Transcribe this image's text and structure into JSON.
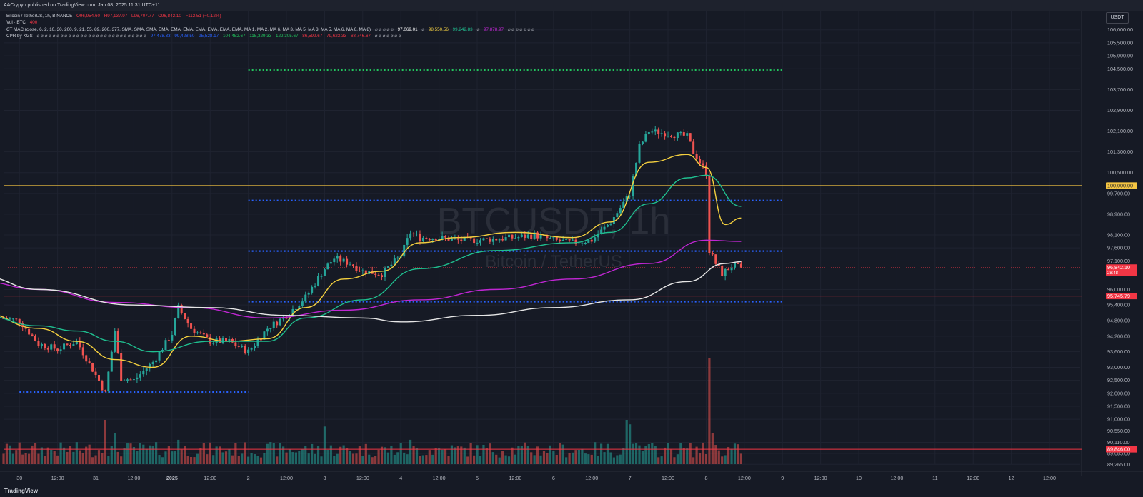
{
  "header": {
    "publish_line": "AACrypyo published on TradingView.com, Jan 08, 2025 11:31 UTC+11"
  },
  "legend": {
    "symbol": "Bitcoin / TetherUS, 1h, BINANCE",
    "open": "O96,954.60",
    "high": "H97,137.97",
    "low": "L96,707.77",
    "close": "C96,842.10",
    "change": "−112.51 (−0.12%)",
    "vol_label": "Vol · BTC",
    "vol_value": "400",
    "mac_label": "CT MAC (close, 6, 2, 10, 30, 200, 9, 21, 55, 89, 200, 377, SMA, SMA, SMA, EMA, EMA, EMA, EMA, EMA, EMA, EMA, MA 1, MA 2, MA 6, MA 3, MA 5, MA 3, MA 5, MA 6, MA 6, MA 8)",
    "mac_symbols": "⌀ ⌀ ⌀ ⌀ ⌀",
    "mac_v1": "97,069.01",
    "mac_s2": "⌀",
    "mac_v2": "98,550.56",
    "mac_v3": "99,242.83",
    "mac_s4": "⌀",
    "mac_v4": "97,878.97",
    "mac_tail": "⌀ ⌀ ⌀ ⌀ ⌀ ⌀ ⌀",
    "cpr_label": "CPR by KGS",
    "cpr_symbols": "⌀ ⌀ ⌀ ⌀ ⌀ ⌀ ⌀ ⌀ ⌀ ⌀ ⌀ ⌀ ⌀ ⌀ ⌀ ⌀ ⌀ ⌀ ⌀ ⌀ ⌀ ⌀ ⌀ ⌀ ⌀ ⌀ ⌀ ⌀",
    "cpr_values": [
      "97,478.33",
      "99,428.50",
      "95,528.17",
      "104,452.67",
      "115,329.33",
      "122,305.67",
      "86,599.67",
      "79,623.33",
      "68,746.67"
    ],
    "cpr_tail": "⌀ ⌀ ⌀ ⌀ ⌀ ⌀ ⌀"
  },
  "currency": "USDT",
  "footer": {
    "logo": "TradingView"
  },
  "colors": {
    "background": "#161a25",
    "up": "#26a69a",
    "down": "#ef5350",
    "ema_yellow": "#f4d03f",
    "ema_green": "#1fbf8f",
    "ma_magenta": "#c026d3",
    "ma_white": "#e6e6e6",
    "cpr_blue": "#2962ff",
    "cpr_green": "#22c55e",
    "level_yellow": "#f5c542",
    "level_red": "#f23645"
  },
  "chart_data": {
    "type": "candlestick",
    "title": "Bitcoin / TetherUS, 1h, BINANCE",
    "watermark_symbol": "BTCUSDT, 1h",
    "watermark_name": "Bitcoin / TetherUS",
    "ylim": [
      89000,
      107000
    ],
    "y_ticks": [
      "106,000.00",
      "105,500.00",
      "105,000.00",
      "104,500.00",
      "103,700.00",
      "102,900.00",
      "102,100.00",
      "101,300.00",
      "100,500.00",
      "99,700.00",
      "98,900.00",
      "98,100.00",
      "97,600.00",
      "97,100.00",
      "96,000.00",
      "95,400.00",
      "94,800.00",
      "94,200.00",
      "93,600.00",
      "93,000.00",
      "92,500.00",
      "92,000.00",
      "91,500.00",
      "91,000.00",
      "90,550.00",
      "90,110.00",
      "89,685.00",
      "89,265.00"
    ],
    "x_ticks": [
      "30",
      "12:00",
      "31",
      "12:00",
      "2025",
      "12:00",
      "2",
      "12:00",
      "3",
      "12:00",
      "4",
      "12:00",
      "5",
      "12:00",
      "6",
      "12:00",
      "7",
      "12:00",
      "8",
      "12:00",
      "9",
      "12:00",
      "10",
      "12:00",
      "11",
      "12:00",
      "12",
      "12:00"
    ],
    "price_labels": {
      "level_100k": "100,000.00",
      "last_price": "96,842.10",
      "last_countdown": "28:48",
      "level_95745": "95,745.79",
      "level_89846": "89,846.00"
    },
    "horizontal_levels": [
      {
        "value": 100000.0,
        "color": "#f5c542"
      },
      {
        "value": 95745.79,
        "color": "#f23645"
      },
      {
        "value": 89846.0,
        "color": "#f23645"
      }
    ],
    "cpr_levels": [
      {
        "value": 104452.67,
        "color": "#22c55e",
        "from": "2025-01-02 00:00",
        "to": "2025-01-09 00:00"
      },
      {
        "value": 99428.5,
        "color": "#2962ff",
        "from": "2025-01-02 00:00",
        "to": "2025-01-09 00:00"
      },
      {
        "value": 97478.33,
        "color": "#2962ff",
        "from": "2025-01-02 00:00",
        "to": "2025-01-09 00:00"
      },
      {
        "value": 95528.17,
        "color": "#2962ff",
        "from": "2025-01-02 00:00",
        "to": "2025-01-09 00:00"
      },
      {
        "value": 92050.0,
        "color": "#2962ff",
        "from": "2024-12-30 00:00",
        "to": "2025-01-02 00:00"
      }
    ],
    "close_keypoints": [
      {
        "t": "2024-12-29 12:00",
        "v": 95000
      },
      {
        "t": "2024-12-30 00:00",
        "v": 94800
      },
      {
        "t": "2024-12-30 06:00",
        "v": 93900
      },
      {
        "t": "2024-12-30 12:00",
        "v": 93700
      },
      {
        "t": "2024-12-30 18:00",
        "v": 94000
      },
      {
        "t": "2024-12-31 00:00",
        "v": 92700
      },
      {
        "t": "2024-12-31 03:00",
        "v": 92000
      },
      {
        "t": "2024-12-31 06:00",
        "v": 94400
      },
      {
        "t": "2024-12-31 08:00",
        "v": 92600
      },
      {
        "t": "2024-12-31 12:00",
        "v": 92500
      },
      {
        "t": "2024-12-31 18:00",
        "v": 93200
      },
      {
        "t": "2025-01-01 00:00",
        "v": 94300
      },
      {
        "t": "2025-01-01 02:00",
        "v": 95300
      },
      {
        "t": "2025-01-01 06:00",
        "v": 94500
      },
      {
        "t": "2025-01-01 12:00",
        "v": 94000
      },
      {
        "t": "2025-01-01 18:00",
        "v": 94000
      },
      {
        "t": "2025-01-02 00:00",
        "v": 93600
      },
      {
        "t": "2025-01-02 06:00",
        "v": 94500
      },
      {
        "t": "2025-01-02 12:00",
        "v": 95000
      },
      {
        "t": "2025-01-02 18:00",
        "v": 95700
      },
      {
        "t": "2025-01-03 00:00",
        "v": 96800
      },
      {
        "t": "2025-01-03 03:00",
        "v": 97200
      },
      {
        "t": "2025-01-03 08:00",
        "v": 97000
      },
      {
        "t": "2025-01-03 12:00",
        "v": 96700
      },
      {
        "t": "2025-01-03 18:00",
        "v": 96600
      },
      {
        "t": "2025-01-04 00:00",
        "v": 97300
      },
      {
        "t": "2025-01-04 03:00",
        "v": 98200
      },
      {
        "t": "2025-01-04 06:00",
        "v": 98000
      },
      {
        "t": "2025-01-04 12:00",
        "v": 98000
      },
      {
        "t": "2025-01-04 18:00",
        "v": 97900
      },
      {
        "t": "2025-01-05 00:00",
        "v": 97900
      },
      {
        "t": "2025-01-05 12:00",
        "v": 98000
      },
      {
        "t": "2025-01-05 18:00",
        "v": 98100
      },
      {
        "t": "2025-01-06 00:00",
        "v": 97900
      },
      {
        "t": "2025-01-06 06:00",
        "v": 97800
      },
      {
        "t": "2025-01-06 12:00",
        "v": 97900
      },
      {
        "t": "2025-01-06 18:00",
        "v": 98600
      },
      {
        "t": "2025-01-07 00:00",
        "v": 99700
      },
      {
        "t": "2025-01-07 03:00",
        "v": 101500
      },
      {
        "t": "2025-01-07 06:00",
        "v": 102100
      },
      {
        "t": "2025-01-07 12:00",
        "v": 102000
      },
      {
        "t": "2025-01-07 18:00",
        "v": 101900
      },
      {
        "t": "2025-01-07 20:00",
        "v": 101300
      },
      {
        "t": "2025-01-08 00:00",
        "v": 100500
      },
      {
        "t": "2025-01-08 01:00",
        "v": 97500
      },
      {
        "t": "2025-01-08 03:00",
        "v": 97000
      },
      {
        "t": "2025-01-08 05:00",
        "v": 96600
      },
      {
        "t": "2025-01-08 08:00",
        "v": 96900
      },
      {
        "t": "2025-01-08 11:00",
        "v": 96842.1
      }
    ],
    "series": [
      {
        "color": "#f4d03f",
        "points": [
          {
            "t": "2024-12-29 12:00",
            "v": 95100
          },
          {
            "t": "2024-12-30 06:00",
            "v": 94500
          },
          {
            "t": "2024-12-30 18:00",
            "v": 94000
          },
          {
            "t": "2024-12-31 06:00",
            "v": 93300
          },
          {
            "t": "2024-12-31 18:00",
            "v": 93000
          },
          {
            "t": "2025-01-01 06:00",
            "v": 94200
          },
          {
            "t": "2025-01-01 18:00",
            "v": 94000
          },
          {
            "t": "2025-01-02 06:00",
            "v": 94100
          },
          {
            "t": "2025-01-02 18:00",
            "v": 95300
          },
          {
            "t": "2025-01-03 06:00",
            "v": 96400
          },
          {
            "t": "2025-01-03 18:00",
            "v": 96700
          },
          {
            "t": "2025-01-04 06:00",
            "v": 97800
          },
          {
            "t": "2025-01-04 18:00",
            "v": 98000
          },
          {
            "t": "2025-01-05 12:00",
            "v": 98200
          },
          {
            "t": "2025-01-06 06:00",
            "v": 98000
          },
          {
            "t": "2025-01-06 18:00",
            "v": 98600
          },
          {
            "t": "2025-01-07 06:00",
            "v": 100900
          },
          {
            "t": "2025-01-07 18:00",
            "v": 101200
          },
          {
            "t": "2025-01-08 00:00",
            "v": 100700
          },
          {
            "t": "2025-01-08 06:00",
            "v": 98500
          },
          {
            "t": "2025-01-08 11:00",
            "v": 98750
          }
        ]
      },
      {
        "color": "#1fbf8f",
        "points": [
          {
            "t": "2024-12-29 12:00",
            "v": 95000
          },
          {
            "t": "2024-12-30 06:00",
            "v": 94600
          },
          {
            "t": "2024-12-30 18:00",
            "v": 94400
          },
          {
            "t": "2024-12-31 06:00",
            "v": 94000
          },
          {
            "t": "2024-12-31 18:00",
            "v": 93600
          },
          {
            "t": "2025-01-01 12:00",
            "v": 94000
          },
          {
            "t": "2025-01-02 06:00",
            "v": 94000
          },
          {
            "t": "2025-01-02 18:00",
            "v": 94900
          },
          {
            "t": "2025-01-03 12:00",
            "v": 95600
          },
          {
            "t": "2025-01-04 06:00",
            "v": 96800
          },
          {
            "t": "2025-01-05 06:00",
            "v": 97500
          },
          {
            "t": "2025-01-06 06:00",
            "v": 97800
          },
          {
            "t": "2025-01-06 18:00",
            "v": 98200
          },
          {
            "t": "2025-01-07 06:00",
            "v": 99300
          },
          {
            "t": "2025-01-07 18:00",
            "v": 100300
          },
          {
            "t": "2025-01-08 00:00",
            "v": 100400
          },
          {
            "t": "2025-01-08 11:00",
            "v": 99200
          }
        ]
      },
      {
        "color": "#c026d3",
        "points": [
          {
            "t": "2024-12-29 12:00",
            "v": 96300
          },
          {
            "t": "2024-12-30 06:00",
            "v": 96000
          },
          {
            "t": "2024-12-31 06:00",
            "v": 95500
          },
          {
            "t": "2025-01-01 06:00",
            "v": 95300
          },
          {
            "t": "2025-01-02 06:00",
            "v": 94900
          },
          {
            "t": "2025-01-03 06:00",
            "v": 95200
          },
          {
            "t": "2025-01-04 06:00",
            "v": 95600
          },
          {
            "t": "2025-01-05 06:00",
            "v": 96000
          },
          {
            "t": "2025-01-06 06:00",
            "v": 96400
          },
          {
            "t": "2025-01-07 06:00",
            "v": 97000
          },
          {
            "t": "2025-01-08 00:00",
            "v": 97900
          },
          {
            "t": "2025-01-08 11:00",
            "v": 97850
          }
        ]
      },
      {
        "color": "#e6e6e6",
        "points": [
          {
            "t": "2024-12-29 12:00",
            "v": 96500
          },
          {
            "t": "2024-12-30 06:00",
            "v": 96000
          },
          {
            "t": "2024-12-31 12:00",
            "v": 95400
          },
          {
            "t": "2025-01-01 12:00",
            "v": 95300
          },
          {
            "t": "2025-01-02 12:00",
            "v": 95000
          },
          {
            "t": "2025-01-03 12:00",
            "v": 94900
          },
          {
            "t": "2025-01-04 00:00",
            "v": 94750
          },
          {
            "t": "2025-01-05 00:00",
            "v": 95000
          },
          {
            "t": "2025-01-06 00:00",
            "v": 95300
          },
          {
            "t": "2025-01-07 00:00",
            "v": 95600
          },
          {
            "t": "2025-01-07 18:00",
            "v": 96300
          },
          {
            "t": "2025-01-08 06:00",
            "v": 97000
          },
          {
            "t": "2025-01-08 11:00",
            "v": 97070
          }
        ]
      }
    ],
    "volume_spikes": [
      {
        "t": "2024-12-31 03:00",
        "v": 1.0
      },
      {
        "t": "2024-12-31 06:00",
        "v": 0.7
      },
      {
        "t": "2025-01-01 02:00",
        "v": 0.55
      },
      {
        "t": "2025-01-03 00:00",
        "v": 0.85
      },
      {
        "t": "2025-01-04 03:00",
        "v": 0.55
      },
      {
        "t": "2025-01-06 23:00",
        "v": 1.0
      },
      {
        "t": "2025-01-07 00:00",
        "v": 0.9
      },
      {
        "t": "2025-01-08 01:00",
        "v": 2.4
      },
      {
        "t": "2025-01-08 02:00",
        "v": 0.7
      }
    ]
  }
}
